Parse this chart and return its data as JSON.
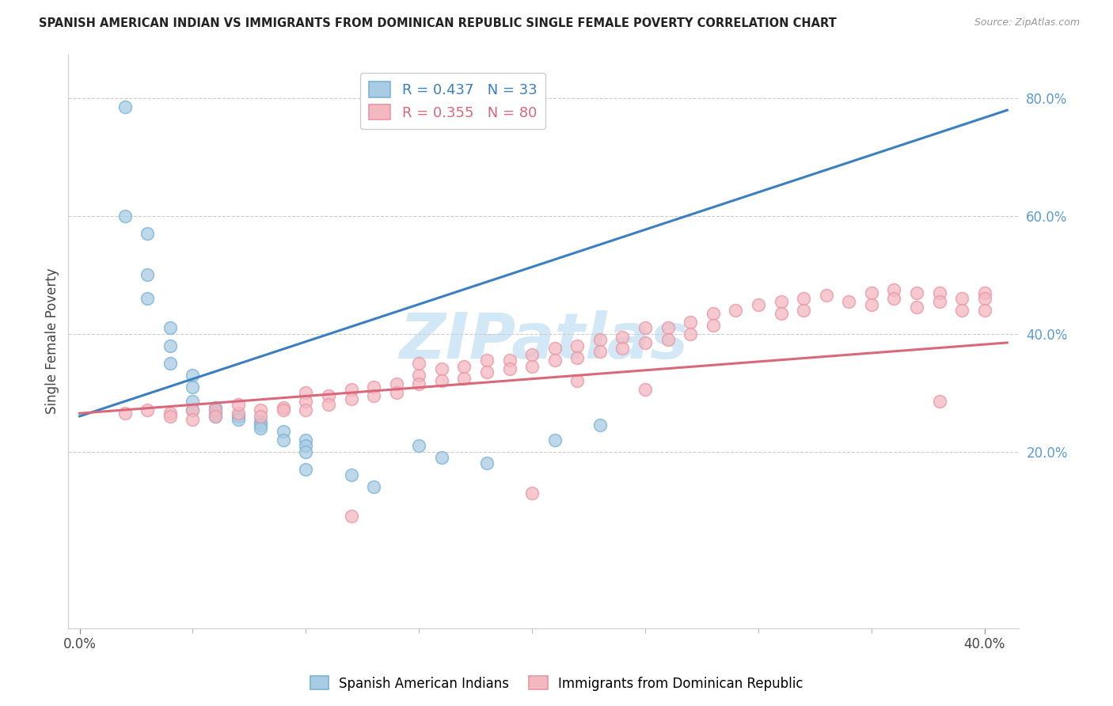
{
  "title": "SPANISH AMERICAN INDIAN VS IMMIGRANTS FROM DOMINICAN REPUBLIC SINGLE FEMALE POVERTY CORRELATION CHART",
  "source": "Source: ZipAtlas.com",
  "ylabel": "Single Female Poverty",
  "legend1_label": "R = 0.437   N = 33",
  "legend2_label": "R = 0.355   N = 80",
  "blue_color": "#a8cce4",
  "blue_edge_color": "#7ab3d4",
  "pink_color": "#f4b8c1",
  "pink_edge_color": "#e897a4",
  "blue_line_color": "#3a7fc1",
  "pink_line_color": "#d9687a",
  "legend_text_blue": "#3a7fc1",
  "legend_text_pink": "#d9687a",
  "right_tick_color": "#5b9bd5",
  "watermark_color": "#cce4f5",
  "blue_x": [
    0.002,
    0.002,
    0.003,
    0.003,
    0.003,
    0.004,
    0.004,
    0.004,
    0.005,
    0.005,
    0.005,
    0.005,
    0.006,
    0.006,
    0.006,
    0.007,
    0.007,
    0.008,
    0.008,
    0.008,
    0.009,
    0.009,
    0.01,
    0.01,
    0.01,
    0.01,
    0.012,
    0.013,
    0.015,
    0.016,
    0.018,
    0.021,
    0.023
  ],
  "blue_y": [
    0.785,
    0.6,
    0.57,
    0.5,
    0.46,
    0.41,
    0.38,
    0.35,
    0.33,
    0.31,
    0.285,
    0.27,
    0.275,
    0.265,
    0.26,
    0.26,
    0.255,
    0.25,
    0.245,
    0.24,
    0.235,
    0.22,
    0.22,
    0.21,
    0.2,
    0.17,
    0.16,
    0.14,
    0.21,
    0.19,
    0.18,
    0.22,
    0.245
  ],
  "pink_x": [
    0.002,
    0.003,
    0.004,
    0.004,
    0.005,
    0.005,
    0.006,
    0.006,
    0.007,
    0.007,
    0.008,
    0.008,
    0.009,
    0.009,
    0.01,
    0.01,
    0.01,
    0.011,
    0.011,
    0.012,
    0.012,
    0.013,
    0.013,
    0.014,
    0.014,
    0.015,
    0.015,
    0.016,
    0.016,
    0.017,
    0.017,
    0.018,
    0.018,
    0.019,
    0.019,
    0.02,
    0.02,
    0.021,
    0.021,
    0.022,
    0.022,
    0.023,
    0.023,
    0.024,
    0.024,
    0.025,
    0.025,
    0.026,
    0.026,
    0.027,
    0.027,
    0.028,
    0.028,
    0.029,
    0.03,
    0.031,
    0.031,
    0.032,
    0.032,
    0.033,
    0.034,
    0.035,
    0.035,
    0.036,
    0.036,
    0.037,
    0.037,
    0.038,
    0.038,
    0.039,
    0.039,
    0.04,
    0.04,
    0.04,
    0.025,
    0.022,
    0.015,
    0.012,
    0.038,
    0.02
  ],
  "pink_y": [
    0.265,
    0.27,
    0.265,
    0.26,
    0.27,
    0.255,
    0.27,
    0.26,
    0.265,
    0.28,
    0.27,
    0.26,
    0.275,
    0.27,
    0.3,
    0.285,
    0.27,
    0.295,
    0.28,
    0.305,
    0.29,
    0.31,
    0.295,
    0.315,
    0.3,
    0.33,
    0.315,
    0.34,
    0.32,
    0.345,
    0.325,
    0.355,
    0.335,
    0.355,
    0.34,
    0.365,
    0.345,
    0.375,
    0.355,
    0.38,
    0.36,
    0.39,
    0.37,
    0.395,
    0.375,
    0.41,
    0.385,
    0.41,
    0.39,
    0.42,
    0.4,
    0.435,
    0.415,
    0.44,
    0.45,
    0.455,
    0.435,
    0.46,
    0.44,
    0.465,
    0.455,
    0.47,
    0.45,
    0.475,
    0.46,
    0.47,
    0.445,
    0.47,
    0.455,
    0.46,
    0.44,
    0.47,
    0.46,
    0.44,
    0.305,
    0.32,
    0.35,
    0.09,
    0.285,
    0.13
  ],
  "xmin": -0.0005,
  "xmax": 0.0415,
  "ymin": -0.1,
  "ymax": 0.875,
  "blue_line_x": [
    0.0,
    0.041
  ],
  "blue_line_y": [
    0.26,
    0.78
  ],
  "pink_line_x": [
    0.0,
    0.041
  ],
  "pink_line_y": [
    0.265,
    0.385
  ]
}
